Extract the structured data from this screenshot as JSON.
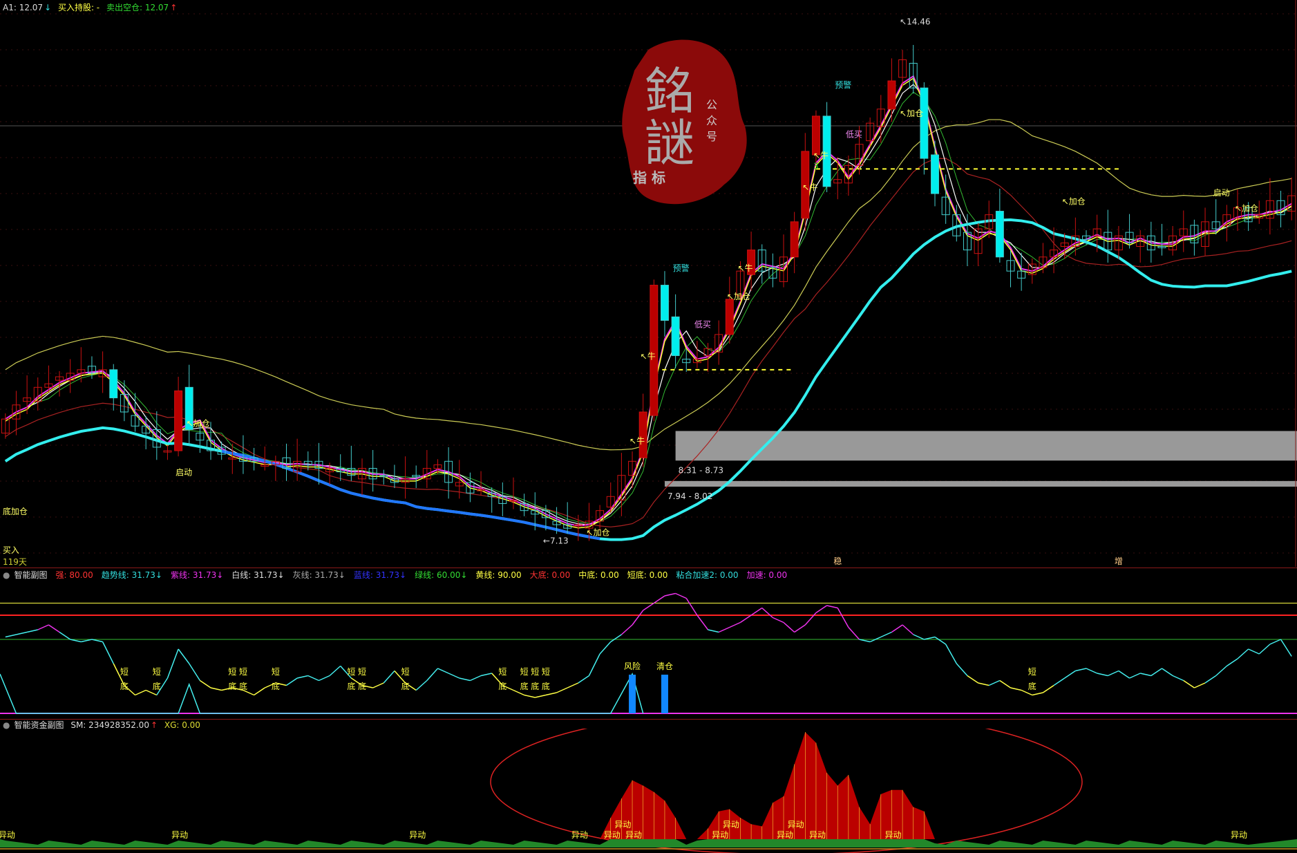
{
  "main": {
    "legend": {
      "a1": "A1: 12.07",
      "buy_hold": "买入持股: -",
      "sell_empty": "卖出空仓: 12.07"
    },
    "days_label": "119天",
    "logo": {
      "big_text": "銘謎",
      "side_text": "公众号",
      "bottom_text": "指标"
    },
    "zones": [
      {
        "label": "8.31 - 8.73",
        "low": 8.31,
        "high": 8.73,
        "start": 62
      },
      {
        "label": "7.94 - 8.02",
        "low": 7.94,
        "high": 8.02,
        "start": 61
      }
    ],
    "annotations": [
      {
        "text": "买入",
        "bar": 0,
        "price": 7.0,
        "color": "#ffff66"
      },
      {
        "text": "底加仓",
        "bar": 0,
        "price": 7.55,
        "color": "#ffff66"
      },
      {
        "text": "↖加仓",
        "bar": 17,
        "price": 8.8,
        "color": "#ffff66"
      },
      {
        "text": "启动",
        "bar": 16,
        "price": 8.1,
        "color": "#ffff66"
      },
      {
        "text": "←7.13",
        "bar": 50,
        "price": 7.13,
        "color": "#dddddd"
      },
      {
        "text": "↖加仓",
        "bar": 54,
        "price": 7.25,
        "color": "#ffff66"
      },
      {
        "text": "↖牛",
        "bar": 58,
        "price": 8.55,
        "color": "#ffff66"
      },
      {
        "text": "↖牛",
        "bar": 59,
        "price": 9.75,
        "color": "#ffff66"
      },
      {
        "text": "预警",
        "bar": 62,
        "price": 11.0,
        "color": "#33dddd"
      },
      {
        "text": "低买",
        "bar": 64,
        "price": 10.2,
        "color": "#ee88ee"
      },
      {
        "text": "↖加仓",
        "bar": 67,
        "price": 10.6,
        "color": "#ffff66"
      },
      {
        "text": "↖牛",
        "bar": 68,
        "price": 11.0,
        "color": "#ffff66"
      },
      {
        "text": "↖牛",
        "bar": 74,
        "price": 12.15,
        "color": "#ffff66"
      },
      {
        "text": "↖牛",
        "bar": 75,
        "price": 12.6,
        "color": "#ffff66"
      },
      {
        "text": "3",
        "bar": 75,
        "price": 12.45,
        "color": "#22cc22"
      },
      {
        "text": "低买",
        "bar": 78,
        "price": 12.9,
        "color": "#ee88ee"
      },
      {
        "text": "预警",
        "bar": 77,
        "price": 13.6,
        "color": "#33dddd"
      },
      {
        "text": "↖加仓",
        "bar": 83,
        "price": 13.2,
        "color": "#ffff66"
      },
      {
        "text": "↖14.46",
        "bar": 83,
        "price": 14.5,
        "color": "#dddddd"
      },
      {
        "text": "↖加仓",
        "bar": 98,
        "price": 11.95,
        "color": "#ffff66"
      },
      {
        "text": "启动",
        "bar": 112,
        "price": 12.07,
        "color": "#ffff66"
      },
      {
        "text": "↖加仓",
        "bar": 114,
        "price": 11.85,
        "color": "#ffff66"
      }
    ],
    "bottom_marks": [
      {
        "text": "稳",
        "bar": 77
      },
      {
        "text": "增",
        "bar": 103
      }
    ]
  },
  "sub1": {
    "title": "智能副图",
    "items": [
      {
        "label": "强: 80.00",
        "color": "#ff3333"
      },
      {
        "label": "趋势线: 31.73↓",
        "color": "#33dddd"
      },
      {
        "label": "紫线: 31.73↓",
        "color": "#ee33ee"
      },
      {
        "label": "白线: 31.73↓",
        "color": "#dddddd"
      },
      {
        "label": "灰线: 31.73↓",
        "color": "#aaaaaa"
      },
      {
        "label": "蓝线: 31.73↓",
        "color": "#3333ff"
      },
      {
        "label": "绿线: 60.00↓",
        "color": "#33dd33"
      },
      {
        "label": "黄线: 90.00",
        "color": "#ffff44"
      },
      {
        "label": "大底: 0.00",
        "color": "#ff3333"
      },
      {
        "label": "中底: 0.00",
        "color": "#ffff44"
      },
      {
        "label": "短底: 0.00",
        "color": "#ffff44"
      },
      {
        "label": "粘合加速2: 0.00",
        "color": "#33dddd"
      },
      {
        "label": "加速: 0.00",
        "color": "#ee33ee"
      }
    ],
    "signals": [
      {
        "text": "风险",
        "bar": 58
      },
      {
        "text": "清仓",
        "bar": 61
      }
    ],
    "bottom_labels": [
      {
        "bar": 11,
        "top": "短",
        "bottom": "底"
      },
      {
        "bar": 14,
        "top": "短",
        "bottom": "底"
      },
      {
        "bar": 21,
        "top": "短",
        "bottom": "底"
      },
      {
        "bar": 22,
        "top": "短",
        "bottom": "底"
      },
      {
        "bar": 25,
        "top": "短",
        "bottom": "底"
      },
      {
        "bar": 32,
        "top": "短",
        "bottom": "底"
      },
      {
        "bar": 33,
        "top": "短",
        "bottom": "底"
      },
      {
        "bar": 37,
        "top": "短",
        "bottom": "底"
      },
      {
        "bar": 46,
        "top": "短",
        "bottom": "底"
      },
      {
        "bar": 48,
        "top": "短",
        "bottom": "底"
      },
      {
        "bar": 49,
        "top": "短",
        "bottom": "底"
      },
      {
        "bar": 50,
        "top": "短",
        "bottom": "底"
      },
      {
        "bar": 95,
        "top": "短",
        "bottom": "底"
      }
    ],
    "levels": {
      "yellow": 90,
      "red": 80,
      "green": 60
    },
    "series": [
      62,
      64,
      66,
      68,
      72,
      66,
      60,
      58,
      60,
      58,
      40,
      22,
      14,
      18,
      14,
      28,
      52,
      40,
      26,
      20,
      18,
      20,
      18,
      14,
      20,
      24,
      22,
      28,
      30,
      26,
      30,
      38,
      28,
      22,
      20,
      24,
      34,
      24,
      18,
      26,
      36,
      32,
      28,
      26,
      30,
      32,
      22,
      18,
      14,
      12,
      14,
      16,
      20,
      24,
      30,
      48,
      58,
      64,
      72,
      84,
      90,
      96,
      98,
      94,
      80,
      68,
      66,
      70,
      74,
      80,
      86,
      78,
      74,
      66,
      72,
      82,
      88,
      86,
      70,
      60,
      58,
      62,
      66,
      72,
      64,
      60,
      62,
      56,
      40,
      30,
      24,
      22,
      26,
      20,
      18,
      14,
      16,
      22,
      28,
      34,
      36,
      32,
      30,
      34,
      28,
      32,
      30,
      36,
      30,
      26,
      20,
      24,
      30,
      38,
      44,
      52,
      48,
      56,
      60,
      46
    ],
    "colors": {
      "yellow": "#ffff44",
      "red": "#ff2222",
      "green": "#33bb33",
      "magenta": "#ee33ee",
      "cyan": "#44eeee"
    }
  },
  "sub2": {
    "title": "智能资金副图",
    "sm": "SM: 234928352.00",
    "xg": "XG: 0.00",
    "signal_label": "异动",
    "signal_bars": [
      0,
      16,
      38,
      53,
      56,
      57,
      58,
      66,
      67,
      72,
      73,
      75,
      82,
      114
    ],
    "flow": [
      0,
      0,
      0,
      0,
      0,
      0,
      0,
      0,
      0,
      0,
      0,
      0,
      0,
      0,
      0,
      0,
      0,
      0,
      0,
      0,
      0,
      0,
      0,
      0,
      0,
      0,
      0,
      0,
      0,
      0,
      0,
      0,
      0,
      0,
      0,
      0,
      0,
      0,
      0,
      0,
      0,
      0,
      0,
      0,
      0,
      0,
      0,
      0,
      0,
      0,
      0,
      0,
      0,
      0,
      0,
      0,
      20,
      38,
      55,
      50,
      44,
      36,
      20,
      0,
      0,
      10,
      26,
      28,
      20,
      14,
      12,
      34,
      40,
      70,
      100,
      90,
      62,
      50,
      60,
      30,
      14,
      42,
      46,
      46,
      30,
      26,
      0,
      0,
      0,
      0,
      0,
      0,
      0,
      0,
      0,
      0,
      0,
      0,
      0,
      0,
      0,
      0,
      0,
      0,
      0,
      0,
      0,
      0,
      0,
      0,
      0,
      0,
      0,
      0,
      0,
      0
    ]
  },
  "chart_data": {
    "type": "candlestick",
    "bars": 120,
    "ylim": [
      6.9,
      14.75
    ],
    "close": [
      8.9,
      9.1,
      9.2,
      9.35,
      9.4,
      9.5,
      9.55,
      9.6,
      9.55,
      9.6,
      9.2,
      9.0,
      8.8,
      8.7,
      8.5,
      8.45,
      9.3,
      8.75,
      8.6,
      8.45,
      8.4,
      8.35,
      8.3,
      8.3,
      8.25,
      8.3,
      8.2,
      8.3,
      8.25,
      8.2,
      8.2,
      8.15,
      8.1,
      8.2,
      8.05,
      8.1,
      8.0,
      8.05,
      8.1,
      8.2,
      8.25,
      8.0,
      8.0,
      7.85,
      7.9,
      7.8,
      7.7,
      7.75,
      7.6,
      7.55,
      7.5,
      7.4,
      7.35,
      7.4,
      7.45,
      7.6,
      7.8,
      8.1,
      8.3,
      9.0,
      10.8,
      10.3,
      9.8,
      9.7,
      9.75,
      9.9,
      10.1,
      10.6,
      11.0,
      11.3,
      11.0,
      10.9,
      11.2,
      11.7,
      12.7,
      13.2,
      12.2,
      12.3,
      12.5,
      12.8,
      13.1,
      13.3,
      13.7,
      14.0,
      13.6,
      12.6,
      12.1,
      11.8,
      11.5,
      11.3,
      11.6,
      11.8,
      11.2,
      11.0,
      10.9,
      11.1,
      11.2,
      11.3,
      11.4,
      11.5,
      11.45,
      11.6,
      11.3,
      11.5,
      11.4,
      11.5,
      11.3,
      11.35,
      11.5,
      11.6,
      11.4,
      11.7,
      11.6,
      11.8,
      11.9,
      11.7,
      11.8,
      12.0,
      11.8,
      12.07
    ],
    "high_marker": 14.46,
    "low_marker": 7.13,
    "colors": {
      "up": "#cc1111",
      "down": "#44cccc",
      "ma_white": "#ffffff",
      "ma_yellow": "#ffff33",
      "trend": "#33eeee",
      "trend_down": "#2277ff",
      "upper": "#cccc55",
      "lower": "#aa2222"
    }
  }
}
